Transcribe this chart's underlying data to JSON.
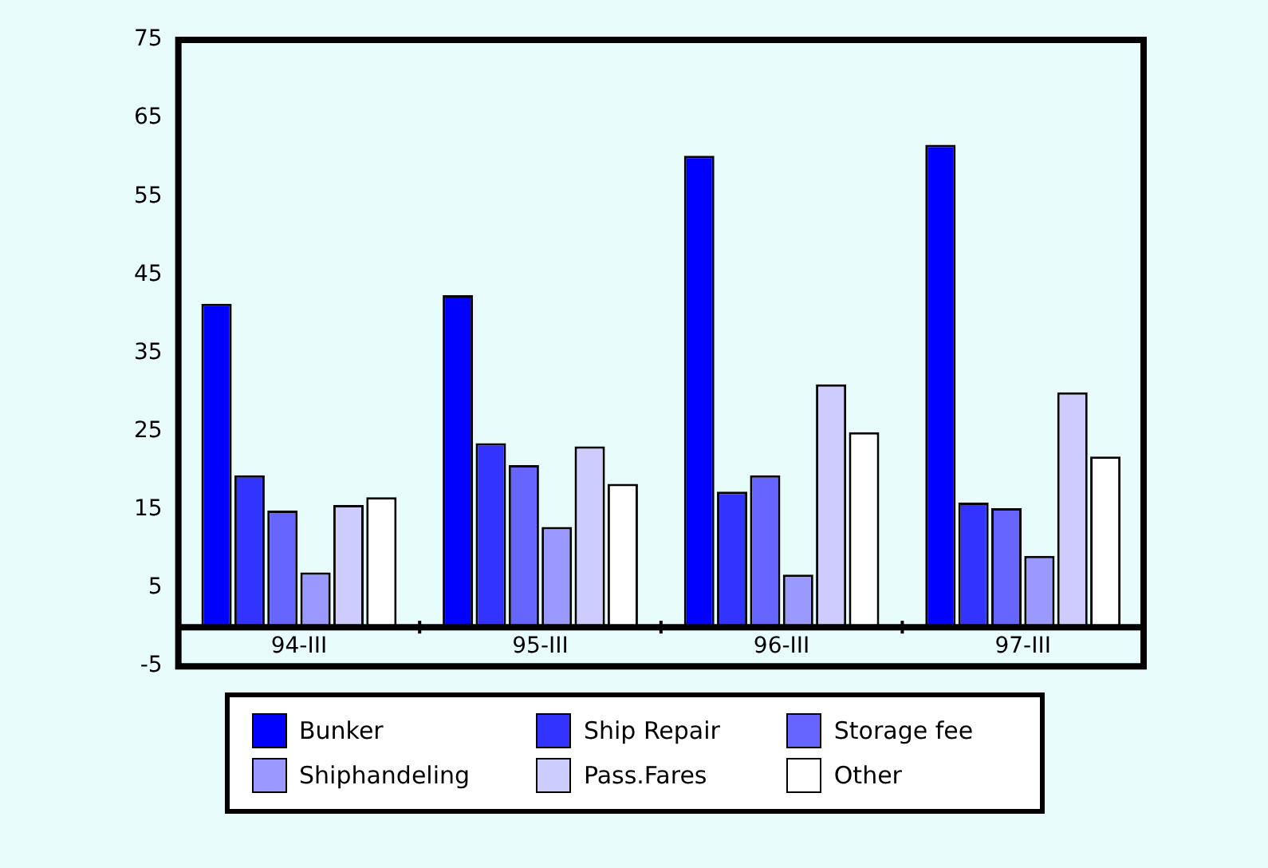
{
  "chart_data": {
    "type": "bar",
    "categories": [
      "94-III",
      "95-III",
      "96-III",
      "97-III"
    ],
    "series": [
      {
        "name": "Bunker",
        "color": "#0000ff",
        "values": [
          41.3,
          42.4,
          60.2,
          61.6
        ]
      },
      {
        "name": "Ship Repair",
        "color": "#3333ff",
        "values": [
          19.4,
          23.5,
          17.3,
          15.9
        ]
      },
      {
        "name": "Storage fee",
        "color": "#6666ff",
        "values": [
          14.9,
          20.7,
          19.4,
          15.2
        ]
      },
      {
        "name": "Shiphandeling",
        "color": "#9999ff",
        "values": [
          7.0,
          12.8,
          6.7,
          9.1
        ]
      },
      {
        "name": "Pass.Fares",
        "color": "#ccccff",
        "values": [
          15.6,
          23.1,
          31.0,
          30.0
        ]
      },
      {
        "name": "Other",
        "color": "#ffffff",
        "values": [
          16.6,
          18.3,
          24.9,
          21.8
        ]
      }
    ],
    "ylim": [
      -5,
      75
    ],
    "yticks": [
      -5,
      5,
      15,
      25,
      35,
      45,
      55,
      65,
      75
    ],
    "grid": false,
    "legend": "bottom"
  }
}
